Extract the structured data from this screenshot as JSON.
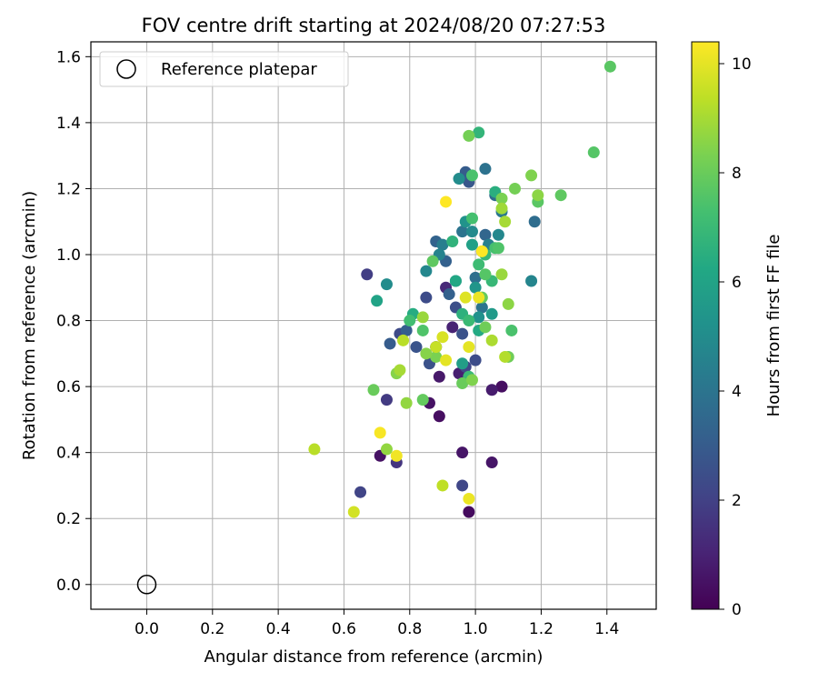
{
  "chart_data": {
    "type": "scatter",
    "title": "FOV centre drift starting at 2024/08/20 07:27:53",
    "xlabel": "Angular distance from reference (arcmin)",
    "ylabel": "Rotation from reference (arcmin)",
    "xlim": [
      -0.17,
      1.55
    ],
    "ylim": [
      -0.075,
      1.645
    ],
    "xticks": [
      "0.0",
      "0.2",
      "0.4",
      "0.6",
      "0.8",
      "1.0",
      "1.2",
      "1.4"
    ],
    "yticks": [
      "0.0",
      "0.2",
      "0.4",
      "0.6",
      "0.8",
      "1.0",
      "1.2",
      "1.4",
      "1.6"
    ],
    "grid": true,
    "legend": {
      "placement": "top-left",
      "entries": [
        "Reference platepar"
      ]
    },
    "reference_point": {
      "x": 0.0,
      "y": 0.0,
      "marker": "open-circle",
      "color": "#000000"
    },
    "colorbar": {
      "label": "Hours from first FF file",
      "colormap": "viridis",
      "range": [
        0,
        10.4
      ],
      "ticks": [
        "0",
        "2",
        "4",
        "6",
        "8",
        "10"
      ]
    },
    "points": [
      [
        0.98,
        0.22,
        0.3
      ],
      [
        1.08,
        0.6,
        0.4
      ],
      [
        0.86,
        0.55,
        0.5
      ],
      [
        0.71,
        0.39,
        0.5
      ],
      [
        0.89,
        0.51,
        0.4
      ],
      [
        0.96,
        0.4,
        0.6
      ],
      [
        1.05,
        0.37,
        0.6
      ],
      [
        1.05,
        0.59,
        0.8
      ],
      [
        0.89,
        0.63,
        0.7
      ],
      [
        0.95,
        0.64,
        0.9
      ],
      [
        0.93,
        0.78,
        1.0
      ],
      [
        0.91,
        0.9,
        1.2
      ],
      [
        0.88,
        0.72,
        1.3
      ],
      [
        0.76,
        0.37,
        1.6
      ],
      [
        0.73,
        0.56,
        1.8
      ],
      [
        0.67,
        0.94,
        1.9
      ],
      [
        0.65,
        0.28,
        2.1
      ],
      [
        0.96,
        0.3,
        2.2
      ],
      [
        0.97,
        0.66,
        2.2
      ],
      [
        0.77,
        0.76,
        2.3
      ],
      [
        0.85,
        0.87,
        2.4
      ],
      [
        1.0,
        0.68,
        2.4
      ],
      [
        0.94,
        0.84,
        2.5
      ],
      [
        0.86,
        0.67,
        2.6
      ],
      [
        0.96,
        0.76,
        2.6
      ],
      [
        0.82,
        0.72,
        2.7
      ],
      [
        0.98,
        1.22,
        2.8
      ],
      [
        0.97,
        1.25,
        3.0
      ],
      [
        0.74,
        0.73,
        3.0
      ],
      [
        0.79,
        0.77,
        3.1
      ],
      [
        0.91,
        0.98,
        3.2
      ],
      [
        0.92,
        0.88,
        3.2
      ],
      [
        0.88,
        1.04,
        3.3
      ],
      [
        1.03,
        1.06,
        3.4
      ],
      [
        1.06,
        1.18,
        3.6
      ],
      [
        1.18,
        1.1,
        3.7
      ],
      [
        1.0,
        0.93,
        3.8
      ],
      [
        1.03,
        1.26,
        3.9
      ],
      [
        1.02,
        0.84,
        4.0
      ],
      [
        0.96,
        1.07,
        4.0
      ],
      [
        1.02,
        1.01,
        4.1
      ],
      [
        1.08,
        1.13,
        4.2
      ],
      [
        0.94,
        0.92,
        4.3
      ],
      [
        0.9,
        1.03,
        4.4
      ],
      [
        1.04,
        1.03,
        4.5
      ],
      [
        0.89,
        1.0,
        4.6
      ],
      [
        1.17,
        0.92,
        4.7
      ],
      [
        0.85,
        0.95,
        4.8
      ],
      [
        1.07,
        1.06,
        4.8
      ],
      [
        0.99,
        1.07,
        4.9
      ],
      [
        0.73,
        0.91,
        5.0
      ],
      [
        0.95,
        1.23,
        5.0
      ],
      [
        1.01,
        0.81,
        5.2
      ],
      [
        0.97,
        1.1,
        5.3
      ],
      [
        1.0,
        0.9,
        5.4
      ],
      [
        1.05,
        0.82,
        5.6
      ],
      [
        0.96,
        0.67,
        5.8
      ],
      [
        0.99,
        1.03,
        5.9
      ],
      [
        0.7,
        0.86,
        6.0
      ],
      [
        0.94,
        0.92,
        6.2
      ],
      [
        1.01,
        0.77,
        6.3
      ],
      [
        0.81,
        0.82,
        6.4
      ],
      [
        1.06,
        1.19,
        6.5
      ],
      [
        0.96,
        0.82,
        6.6
      ],
      [
        0.93,
        1.04,
        6.7
      ],
      [
        1.01,
        1.37,
        6.8
      ],
      [
        1.03,
        1.0,
        6.9
      ],
      [
        1.05,
        0.92,
        6.9
      ],
      [
        0.98,
        0.63,
        7.0
      ],
      [
        0.98,
        0.8,
        7.0
      ],
      [
        1.01,
        0.97,
        7.1
      ],
      [
        0.8,
        0.8,
        7.2
      ],
      [
        1.06,
        1.02,
        7.3
      ],
      [
        0.99,
        1.11,
        7.3
      ],
      [
        1.11,
        0.77,
        7.4
      ],
      [
        0.99,
        1.24,
        7.4
      ],
      [
        1.07,
        1.02,
        7.5
      ],
      [
        0.84,
        0.77,
        7.5
      ],
      [
        1.03,
        0.94,
        7.6
      ],
      [
        1.36,
        1.31,
        7.6
      ],
      [
        1.19,
        1.16,
        7.7
      ],
      [
        1.41,
        1.57,
        7.7
      ],
      [
        1.26,
        1.18,
        7.8
      ],
      [
        0.87,
        0.98,
        7.8
      ],
      [
        0.84,
        0.56,
        7.9
      ],
      [
        1.02,
        0.87,
        7.9
      ],
      [
        0.96,
        0.61,
        8.0
      ],
      [
        0.69,
        0.59,
        8.0
      ],
      [
        1.03,
        0.78,
        8.1
      ],
      [
        1.1,
        0.69,
        8.1
      ],
      [
        1.12,
        1.2,
        8.2
      ],
      [
        0.98,
        1.36,
        8.2
      ],
      [
        1.08,
        1.17,
        8.3
      ],
      [
        0.88,
        0.69,
        8.3
      ],
      [
        0.99,
        0.62,
        8.4
      ],
      [
        1.17,
        1.24,
        8.4
      ],
      [
        0.85,
        0.7,
        8.5
      ],
      [
        0.76,
        0.64,
        8.5
      ],
      [
        1.1,
        0.85,
        8.6
      ],
      [
        1.19,
        1.18,
        8.6
      ],
      [
        0.73,
        0.41,
        8.7
      ],
      [
        0.79,
        0.55,
        8.7
      ],
      [
        1.08,
        0.94,
        8.8
      ],
      [
        0.84,
        0.81,
        8.8
      ],
      [
        1.08,
        1.14,
        8.9
      ],
      [
        1.09,
        1.1,
        9.0
      ],
      [
        0.77,
        0.65,
        9.0
      ],
      [
        1.05,
        0.74,
        9.1
      ],
      [
        1.09,
        0.69,
        9.2
      ],
      [
        0.78,
        0.74,
        9.3
      ],
      [
        0.51,
        0.41,
        9.3
      ],
      [
        0.9,
        0.3,
        9.4
      ],
      [
        0.88,
        0.72,
        9.5
      ],
      [
        0.63,
        0.22,
        9.7
      ],
      [
        0.9,
        0.75,
        9.8
      ],
      [
        0.97,
        0.87,
        9.9
      ],
      [
        0.91,
        0.68,
        10.0
      ],
      [
        0.98,
        0.72,
        10.0
      ],
      [
        1.01,
        0.87,
        10.1
      ],
      [
        0.98,
        0.26,
        10.1
      ],
      [
        0.76,
        0.39,
        10.2
      ],
      [
        0.71,
        0.46,
        10.3
      ],
      [
        1.02,
        1.01,
        10.4
      ],
      [
        0.91,
        1.16,
        10.4
      ]
    ]
  }
}
